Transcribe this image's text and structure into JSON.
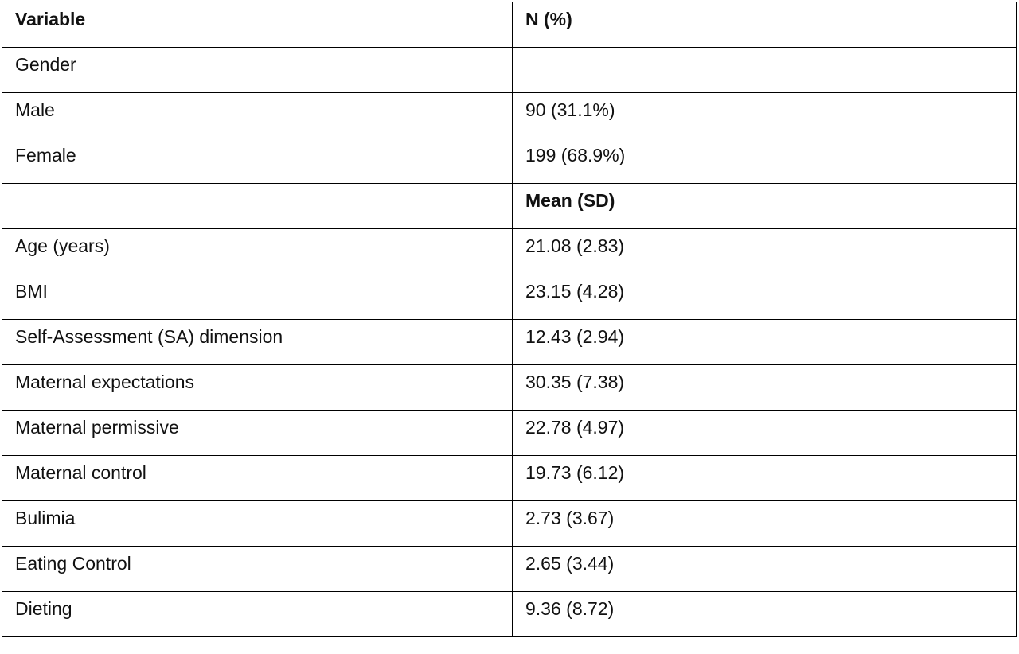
{
  "table": {
    "header": {
      "variable": "Variable",
      "value": "N (%)"
    },
    "rows": [
      {
        "variable": "Gender"
      },
      {
        "variable": "Male",
        "value": "90 (31.1%)"
      },
      {
        "variable": "Female",
        "value": "199 (68.9%)"
      },
      {
        "subheader": "Mean (SD)"
      },
      {
        "variable": "Age (years)",
        "value": "21.08 (2.83)"
      },
      {
        "variable": "BMI",
        "value": "23.15 (4.28)"
      },
      {
        "variable": "Self-Assessment (SA) dimension",
        "value": "12.43 (2.94)"
      },
      {
        "variable": "Maternal expectations",
        "value": "30.35 (7.38)"
      },
      {
        "variable": "Maternal permissive",
        "value": "22.78 (4.97)"
      },
      {
        "variable": "Maternal control",
        "value": "19.73 (6.12)"
      },
      {
        "variable": "Bulimia",
        "value": "2.73 (3.67)"
      },
      {
        "variable": "Eating Control",
        "value": "2.65 (3.44)"
      },
      {
        "variable": "Dieting",
        "value": "9.36 (8.72)"
      }
    ]
  }
}
